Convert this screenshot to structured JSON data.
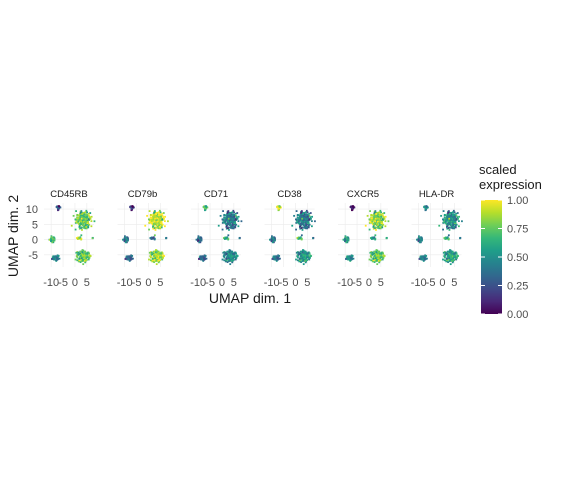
{
  "chart_data": {
    "type": "scatter",
    "xlabel": "UMAP dim. 1",
    "ylabel": "UMAP dim. 2",
    "x_ticks": [
      "-10",
      "-5",
      "0",
      "5"
    ],
    "y_ticks": [
      "10",
      "5",
      "0",
      "-5"
    ],
    "x_tick_values": [
      -10,
      -5,
      0,
      5
    ],
    "y_tick_values": [
      10,
      5,
      0,
      -5
    ],
    "xlim": [
      -13,
      8
    ],
    "ylim": [
      -9,
      12
    ],
    "panels": [
      {
        "name": "CD45RB",
        "levels": [
          0.25,
          0.65,
          0.45,
          0.75,
          0.72,
          0.85,
          0.55
        ]
      },
      {
        "name": "CD79b",
        "levels": [
          0.15,
          0.35,
          0.35,
          0.9,
          0.82,
          0.3,
          0.3
        ]
      },
      {
        "name": "CD71",
        "levels": [
          0.7,
          0.3,
          0.35,
          0.4,
          0.45,
          0.6,
          0.25
        ]
      },
      {
        "name": "CD38",
        "levels": [
          0.95,
          0.35,
          0.4,
          0.4,
          0.5,
          0.7,
          0.2
        ]
      },
      {
        "name": "CXCR5",
        "levels": [
          0.05,
          0.5,
          0.5,
          0.8,
          0.72,
          0.5,
          0.5
        ]
      },
      {
        "name": "HLA-DR",
        "levels": [
          0.5,
          0.4,
          0.45,
          0.48,
          0.55,
          0.62,
          0.3
        ]
      }
    ],
    "clusters": [
      {
        "x": -7,
        "y": 10.5,
        "sx": 0.8,
        "sy": 0.6,
        "n": 22
      },
      {
        "x": -9.5,
        "y": 0,
        "sx": 1.1,
        "sy": 0.8,
        "n": 40
      },
      {
        "x": -8,
        "y": -6,
        "sx": 1.4,
        "sy": 0.8,
        "n": 45
      },
      {
        "x": 3.5,
        "y": 6.5,
        "sx": 2.6,
        "sy": 2.3,
        "n": 260
      },
      {
        "x": 3.5,
        "y": -5.5,
        "sx": 2.4,
        "sy": 1.6,
        "n": 190
      },
      {
        "x": 1.5,
        "y": 0.5,
        "sx": 1.0,
        "sy": 0.4,
        "n": 18
      },
      {
        "x": 7.5,
        "y": 0.5,
        "sx": 0.15,
        "sy": 0.15,
        "n": 3
      }
    ],
    "legend": {
      "title_lines": [
        "scaled",
        "expression"
      ],
      "ticks": [
        "1.00",
        "0.75",
        "0.50",
        "0.25",
        "0.00"
      ],
      "tick_values": [
        1.0,
        0.75,
        0.5,
        0.25,
        0.0
      ],
      "colormap": "viridis",
      "placement": "right"
    },
    "colors": {
      "viridis": [
        "#440154",
        "#482878",
        "#3e4a89",
        "#31688e",
        "#26828e",
        "#1f9e89",
        "#35b779",
        "#6ece58",
        "#b5de2b",
        "#fde725"
      ],
      "grid": "#ebebeb",
      "text": "#1a1a1a"
    }
  }
}
